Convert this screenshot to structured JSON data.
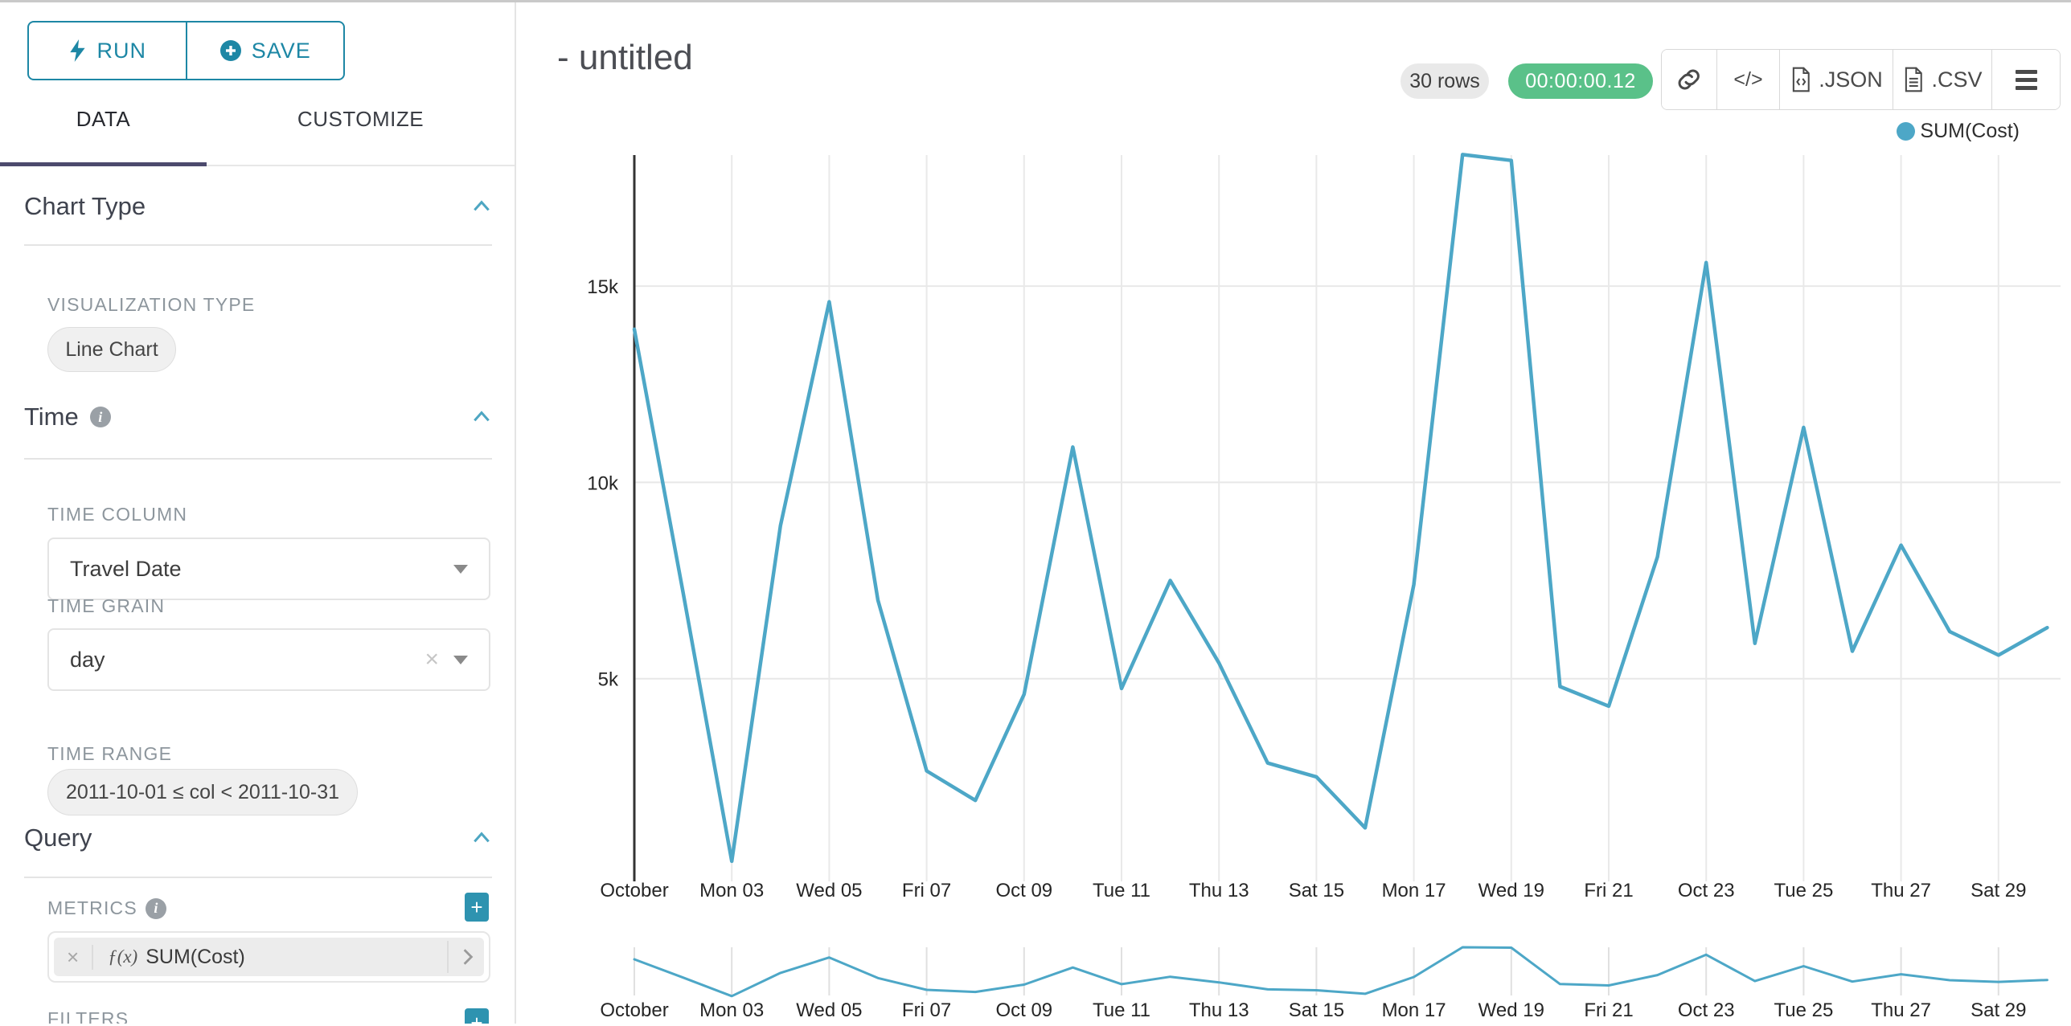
{
  "sidebar": {
    "run_label": "RUN",
    "save_label": "SAVE",
    "tabs": {
      "data": "DATA",
      "customize": "CUSTOMIZE"
    },
    "sections": {
      "chart_type": {
        "title": "Chart Type",
        "viz_type_label": "VISUALIZATION TYPE",
        "viz_type_value": "Line Chart"
      },
      "time": {
        "title": "Time",
        "info_icon": "i",
        "time_column_label": "TIME COLUMN",
        "time_column_value": "Travel Date",
        "time_grain_label": "TIME GRAIN",
        "time_grain_value": "day",
        "clear_icon": "×",
        "time_range_label": "TIME RANGE",
        "time_range_value": "2011-10-01 ≤ col < 2011-10-31"
      },
      "query": {
        "title": "Query",
        "info_icon": "i",
        "metrics_label": "METRICS",
        "add_icon": "+",
        "metric_fx": "ƒ(x)",
        "metric_value": "SUM(Cost)",
        "filters_label": "FILTERS"
      }
    }
  },
  "header": {
    "title": "- untitled",
    "rows_badge": "30 rows",
    "timer": "00:00:00.12",
    "code_label": "</>",
    "json_label": ".JSON",
    "csv_label": ".CSV"
  },
  "legend": {
    "label": "SUM(Cost)",
    "color": "#4da7c7"
  },
  "colors": {
    "accent_teal": "#1d87a5",
    "add_button_teal": "#2e93b0",
    "timer_green": "#5ac189",
    "tab_underline": "#4c4a6d",
    "line": "#4da7c7",
    "grid": "#e8e8e8",
    "axis": "#333333"
  },
  "chart_data": {
    "type": "line",
    "title": "",
    "xlabel": "",
    "ylabel": "",
    "grid": true,
    "legend_position": "top-right",
    "ylim": [
      0,
      18400
    ],
    "y_tick_values": [
      5000,
      10000,
      15000
    ],
    "y_tick_labels": [
      "5k",
      "10k",
      "15k"
    ],
    "x_tick_labels": [
      "October",
      "Mon 03",
      "Wed 05",
      "Fri 07",
      "Oct 09",
      "Tue 11",
      "Thu 13",
      "Sat 15",
      "Mon 17",
      "Wed 19",
      "Fri 21",
      "Oct 23",
      "Tue 25",
      "Thu 27",
      "Sat 29"
    ],
    "has_context_brush_chart": true,
    "series": [
      {
        "name": "SUM(Cost)",
        "color": "#4da7c7",
        "x": [
          "2011-10-01",
          "2011-10-02",
          "2011-10-03",
          "2011-10-04",
          "2011-10-05",
          "2011-10-06",
          "2011-10-07",
          "2011-10-08",
          "2011-10-09",
          "2011-10-10",
          "2011-10-11",
          "2011-10-12",
          "2011-10-13",
          "2011-10-14",
          "2011-10-15",
          "2011-10-16",
          "2011-10-17",
          "2011-10-18",
          "2011-10-19",
          "2011-10-20",
          "2011-10-21",
          "2011-10-22",
          "2011-10-23",
          "2011-10-24",
          "2011-10-25",
          "2011-10-26",
          "2011-10-27",
          "2011-10-28",
          "2011-10-29",
          "2011-10-30"
        ],
        "values": [
          13900,
          7200,
          350,
          8900,
          14600,
          7000,
          2650,
          1900,
          4600,
          10900,
          4750,
          7500,
          5400,
          2850,
          2500,
          1200,
          7400,
          18350,
          18200,
          4800,
          4300,
          8100,
          15600,
          5900,
          11400,
          5700,
          8400,
          6200,
          5600,
          6300
        ]
      }
    ]
  }
}
